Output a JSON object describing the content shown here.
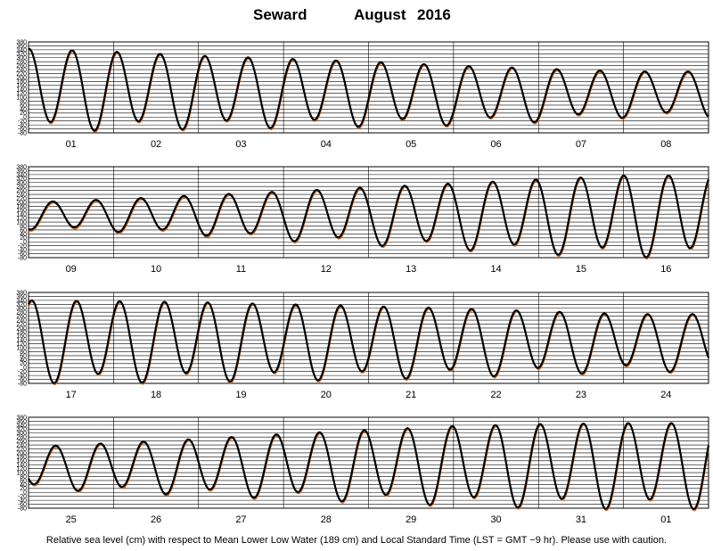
{
  "title": {
    "station": "Seward",
    "month": "August",
    "year": "2016"
  },
  "footer": "Relative sea level (cm) with respect to Mean Lower Low Water (189 cm) and Local Standard Time (LST = GMT −9 hr). Please use with caution.",
  "chart_data": {
    "type": "line",
    "y_ticks": [
      "380",
      "360",
      "340",
      "320",
      "300",
      "280",
      "260",
      "240",
      "220",
      "200",
      "180",
      "160",
      "140",
      "120",
      "100",
      "80",
      "60",
      "40",
      "20",
      "0",
      "-20",
      "-40",
      "-60",
      "-80"
    ],
    "ylim": [
      -80,
      380
    ],
    "grid": true,
    "colors": {
      "observed": "#000000",
      "predicted": "#d2691e"
    },
    "panels": [
      {
        "days": [
          "01",
          "02",
          "03",
          "04",
          "05",
          "06",
          "07",
          "08"
        ],
        "highs": [
          345,
          330,
          310,
          295,
          280,
          260,
          245,
          230
        ],
        "lows": [
          -50,
          -45,
          -40,
          -35,
          -30,
          -25,
          -10,
          10
        ],
        "phase_start_days": 0.0,
        "day_offset": 0
      },
      {
        "days": [
          "09",
          "10",
          "11",
          "12",
          "13",
          "14",
          "15",
          "16"
        ],
        "highs": [
          200,
          215,
          235,
          255,
          275,
          295,
          315,
          335
        ],
        "lows": [
          70,
          60,
          45,
          20,
          0,
          -20,
          -40,
          -55
        ],
        "phase_start_days": 0.0,
        "day_offset": 8
      },
      {
        "days": [
          "17",
          "18",
          "19",
          "20",
          "21",
          "22",
          "23",
          "24"
        ],
        "highs": [
          340,
          335,
          330,
          320,
          310,
          300,
          285,
          270
        ],
        "lows": [
          -55,
          -55,
          -50,
          -45,
          -40,
          -30,
          -20,
          -5
        ],
        "phase_start_days": 0.0,
        "day_offset": 16
      },
      {
        "days": [
          "25",
          "26",
          "27",
          "28",
          "29",
          "30",
          "31",
          "01"
        ],
        "highs": [
          230,
          250,
          270,
          295,
          315,
          335,
          345,
          350
        ],
        "lows": [
          30,
          15,
          0,
          -15,
          -30,
          -45,
          -55,
          -60
        ],
        "phase_start_days": 0.0,
        "day_offset": 24
      }
    ]
  }
}
